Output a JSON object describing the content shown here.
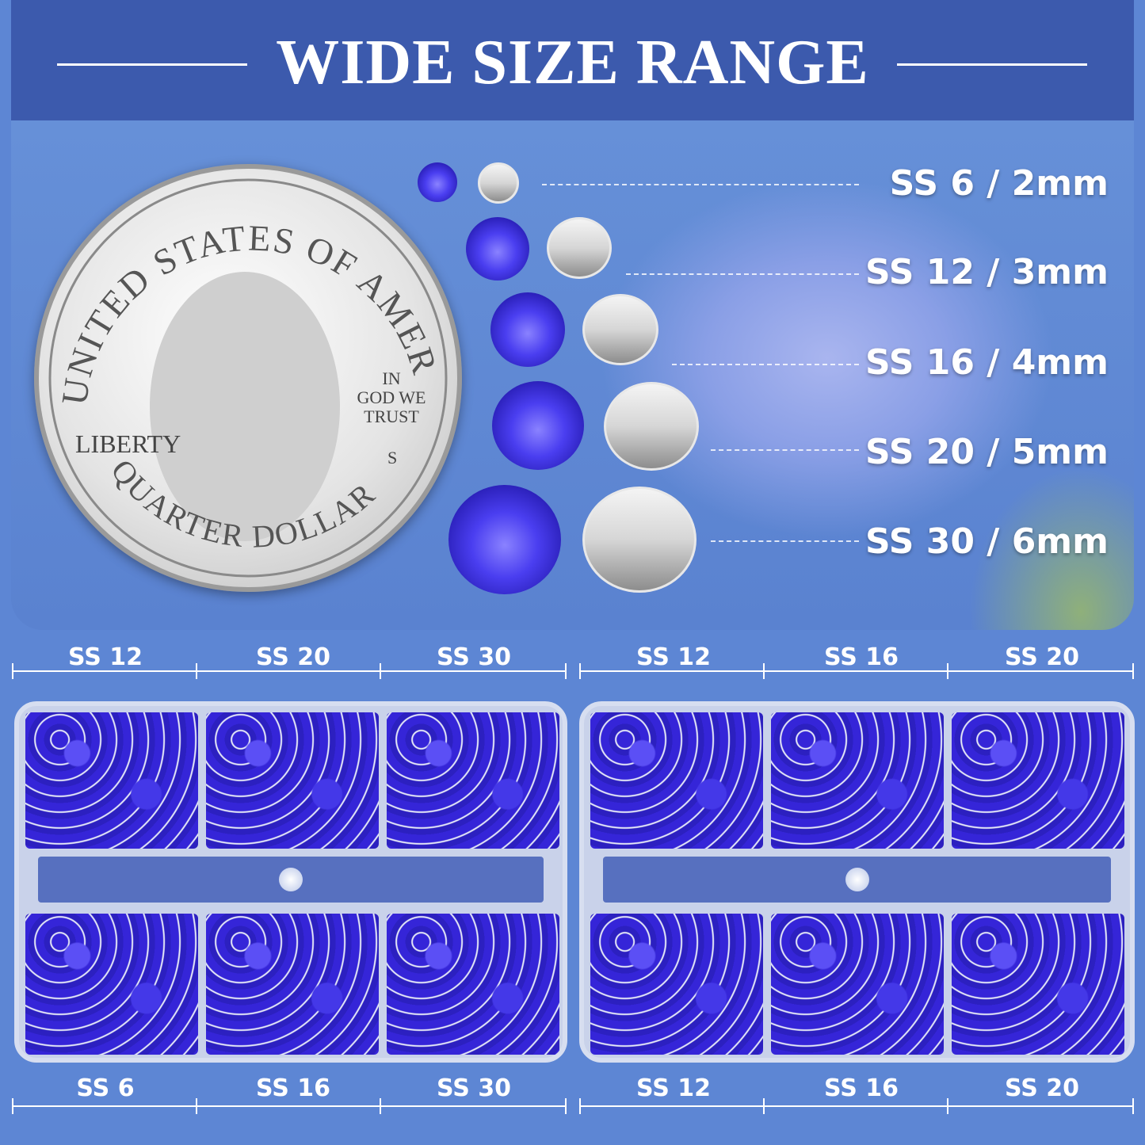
{
  "title": "WIDE SIZE RANGE",
  "coin": {
    "top_text": "UNITED STATES OF AMERICA",
    "motto": [
      "IN",
      "GOD WE",
      "TRUST"
    ],
    "liberty": "LIBERTY",
    "bottom_text": "QUARTER DOLLAR",
    "mint_mark": "S"
  },
  "sizes": [
    {
      "label": "SS 6 / 2mm"
    },
    {
      "label": "SS 12 / 3mm"
    },
    {
      "label": "SS 16 / 4mm"
    },
    {
      "label": "SS 20 / 5mm"
    },
    {
      "label": "SS 30 / 6mm"
    }
  ],
  "box_left": {
    "top_labels": [
      "SS 12",
      "SS 20",
      "SS 30"
    ],
    "bottom_labels": [
      "SS 6",
      "SS 16",
      "SS 30"
    ]
  },
  "box_right": {
    "top_labels": [
      "SS 12",
      "SS 16",
      "SS 20"
    ],
    "bottom_labels": [
      "SS 12",
      "SS 16",
      "SS 20"
    ]
  },
  "colors": {
    "header": "#3c5aad",
    "background": "#5d86d4",
    "rhinestone": "#3a2ee0"
  }
}
